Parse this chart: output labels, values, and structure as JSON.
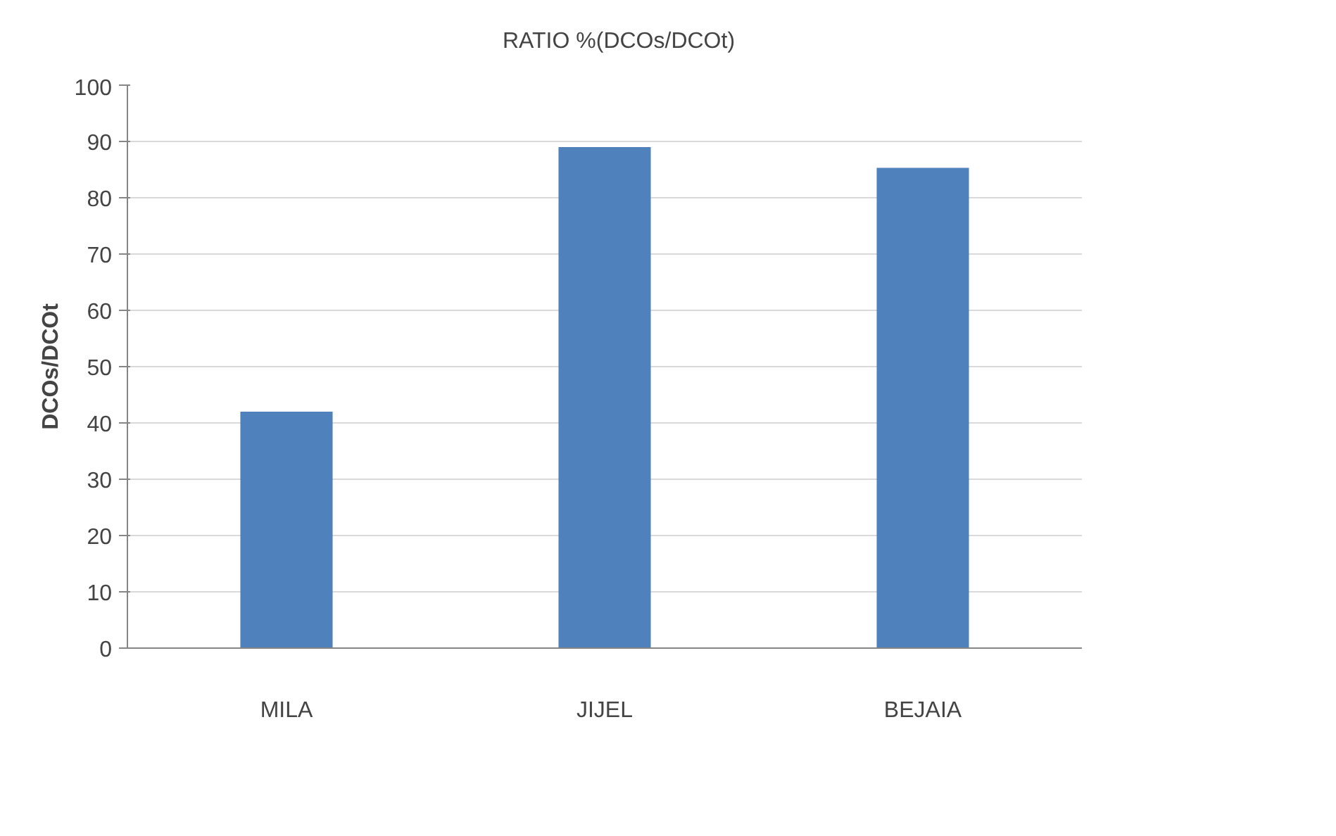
{
  "chart_data": {
    "type": "bar",
    "ylabel": "DCOs/DCOt",
    "categories": [
      "MILA",
      "JIJEL",
      "BEJAIA"
    ],
    "series": [
      {
        "name": "RATIO %(DCOs/DCOt)",
        "color": "#4f81bd",
        "values": [
          42,
          89,
          85.3
        ]
      }
    ],
    "ylim": [
      0,
      100
    ],
    "yticks": [
      0,
      10,
      20,
      30,
      40,
      50,
      60,
      70,
      80,
      90,
      100
    ],
    "grid": "y",
    "legend": "top"
  }
}
